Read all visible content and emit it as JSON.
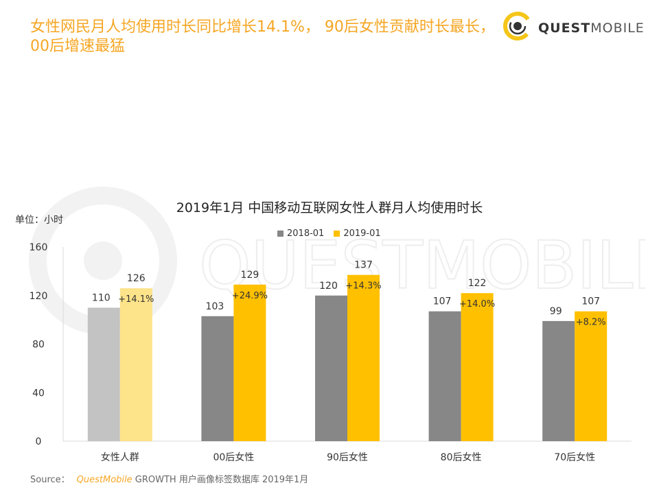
{
  "headline": "女性网民月人均使用时长同比增长14.1%， 90后女性贡献时长最长，00后增速最猛",
  "logo": {
    "bold": "QUEST",
    "light": "MOBILE"
  },
  "watermark": "QUESTMOBILE",
  "unit_label": "单位：小时",
  "source": {
    "label": "Source：",
    "brand": "QuestMobile",
    "text": "GROWTH 用户画像标签数据库 2019年1月"
  },
  "colors": {
    "headline": "#f5a623",
    "series_2018": "#878787",
    "series_2019": "#ffc000",
    "series_2018_highlight": "#c3c3c3",
    "series_2019_highlight": "#fde38a"
  },
  "chart_data": {
    "type": "bar",
    "title": "2019年1月 中国移动互联网女性人群月人均使用时长",
    "ylabel": "单位：小时",
    "ylim": [
      0,
      160
    ],
    "yticks": [
      0,
      40,
      80,
      120,
      160
    ],
    "categories": [
      "女性人群",
      "00后女性",
      "90后女性",
      "80后女性",
      "70后女性"
    ],
    "series": [
      {
        "name": "2018-01",
        "values": [
          110,
          103,
          120,
          107,
          99
        ]
      },
      {
        "name": "2019-01",
        "values": [
          126,
          129,
          137,
          122,
          107
        ]
      }
    ],
    "growth_labels": [
      "+14.1%",
      "+24.9%",
      "+14.3%",
      "+14.0%",
      "+8.2%"
    ],
    "legend_position": "top-center"
  }
}
